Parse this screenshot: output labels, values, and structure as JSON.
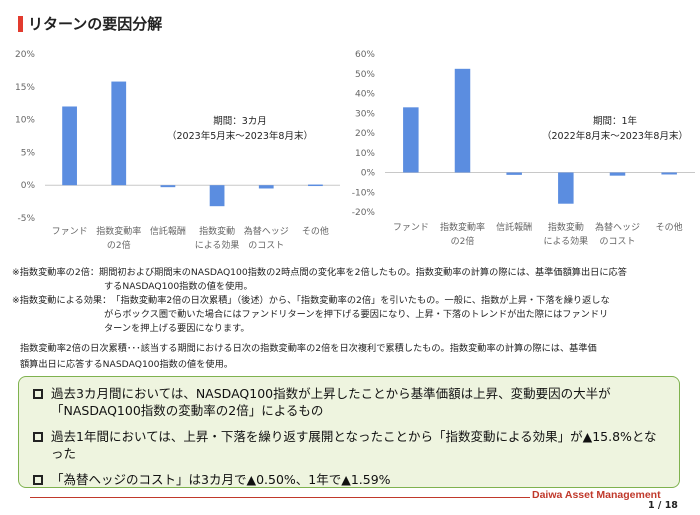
{
  "title": "リターンの要因分解",
  "chart_data": [
    {
      "type": "bar",
      "categories": [
        [
          "ファンド"
        ],
        [
          "指数変動率",
          "の2倍"
        ],
        [
          "信託報酬"
        ],
        [
          "指数変動",
          "による効果"
        ],
        [
          "為替ヘッジ",
          "のコスト"
        ],
        [
          "その他"
        ]
      ],
      "values": [
        12.0,
        15.8,
        -0.3,
        -3.2,
        -0.5,
        0.1
      ],
      "ylim": [
        -5,
        20
      ],
      "yticks": [
        20,
        15,
        10,
        5,
        0,
        -5
      ],
      "ytick_labels": [
        "20%",
        "15%",
        "10%",
        "5%",
        "0%",
        "-5%"
      ],
      "period_line1": "期間：3カ月",
      "period_line2": "（2023年5月末～2023年8月末）",
      "bar_color": "#5b8de0",
      "grid": false
    },
    {
      "type": "bar",
      "categories": [
        [
          "ファンド"
        ],
        [
          "指数変動率",
          "の2倍"
        ],
        [
          "信託報酬"
        ],
        [
          "指数変動",
          "による効果"
        ],
        [
          "為替ヘッジ",
          "のコスト"
        ],
        [
          "その他"
        ]
      ],
      "values": [
        33.0,
        52.5,
        -1.2,
        -15.8,
        -1.6,
        -1.0
      ],
      "ylim": [
        -20,
        60
      ],
      "yticks": [
        60,
        50,
        40,
        30,
        20,
        10,
        0,
        -10,
        -20
      ],
      "ytick_labels": [
        "60%",
        "50%",
        "40%",
        "30%",
        "20%",
        "10%",
        "0%",
        "-10%",
        "-20%"
      ],
      "period_line1": "期間：1年",
      "period_line2": "（2022年8月末～2023年8月末）",
      "bar_color": "#5b8de0",
      "grid": false
    }
  ],
  "notes": [
    {
      "label": "※指数変動率の2倍：",
      "text": "期間初および期間末のNASDAQ100指数の2時点間の変化率を2倍したもの。指数変動率の計算の際には、基準価額算出日に応答",
      "cont": "するNASDAQ100指数の値を使用。"
    },
    {
      "label": "※指数変動による効果：",
      "text": "「指数変動率2倍の日次累積」（後述）から、「指数変動率の2倍」を引いたもの。一般に、指数が上昇・下落を繰り返しな",
      "cont1": "がらボックス圏で動いた場合にはファンドリターンを押下げる要因になり、上昇・下落のトレンドが出た際にはファンドリ",
      "cont2": "ターンを押上げる要因になります。"
    }
  ],
  "daily_note_line1": "指数変動率2倍の日次累積･･･該当する期間における日次の指数変動率の2倍を日次複利で累積したもの。指数変動率の計算の際には、基準価",
  "daily_note_line2": "額算出日に応答するNASDAQ100指数の値を使用。",
  "summary": {
    "b1_line1": "過去3カ月間においては、NASDAQ100指数が上昇したことから基準価額は上昇、変動要因の大半が",
    "b1_line2": "「NASDAQ100指数の変動率の2倍」によるもの",
    "b2": "過去1年間においては、上昇・下落を繰り返す展開となったことから「指数変動による効果」が▲15.8%となった",
    "b3": "「為替ヘッジのコスト」は3カ月で▲0.50%、1年で▲1.59%"
  },
  "brand": "Daiwa Asset Management",
  "page": "1 / 18"
}
